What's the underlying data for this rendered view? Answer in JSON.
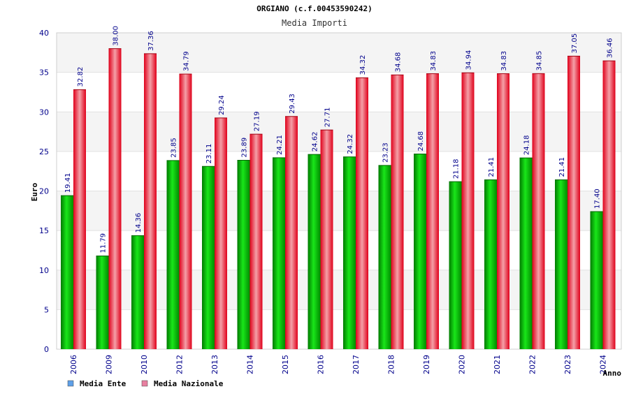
{
  "chart_data": {
    "type": "bar",
    "title": "ORGIANO (c.f.00453590242)",
    "subtitle": "Media Importi",
    "ylabel": "Euro",
    "xlabel": "Anno",
    "ylim": [
      0,
      40
    ],
    "yticks": [
      0,
      5,
      10,
      15,
      20,
      25,
      30,
      35,
      40
    ],
    "grid": true,
    "legend_position": "bottom-left",
    "categories": [
      "2006",
      "2009",
      "2010",
      "2012",
      "2013",
      "2014",
      "2015",
      "2016",
      "2017",
      "2018",
      "2019",
      "2020",
      "2021",
      "2022",
      "2023",
      "2024"
    ],
    "series": [
      {
        "name": "Media Ente",
        "color": "#00b400",
        "legend_color": "#5fa0e8",
        "values": [
          19.41,
          11.79,
          14.36,
          23.85,
          23.11,
          23.89,
          24.21,
          24.62,
          24.32,
          23.23,
          24.68,
          21.18,
          21.41,
          24.18,
          21.41,
          17.4
        ],
        "labels": [
          "19.41",
          "11.79",
          "14.36",
          "23.85",
          "23.11",
          "23.89",
          "24.21",
          "24.62",
          "24.32",
          "23.23",
          "24.68",
          "21.18",
          "21.41",
          "24.18",
          "21.41",
          "17.40"
        ]
      },
      {
        "name": "Media Nazionale",
        "color": "#e8001e",
        "legend_color": "#e87fa0",
        "values": [
          32.82,
          38.0,
          37.36,
          34.79,
          29.24,
          27.19,
          29.43,
          27.71,
          34.32,
          34.68,
          34.83,
          34.94,
          34.83,
          34.85,
          37.05,
          36.46
        ],
        "labels": [
          "32.82",
          "38.00",
          "37.36",
          "34.79",
          "29.24",
          "27.19",
          "29.43",
          "27.71",
          "34.32",
          "34.68",
          "34.83",
          "34.94",
          "34.83",
          "34.85",
          "37.05",
          "36.46"
        ]
      }
    ]
  }
}
